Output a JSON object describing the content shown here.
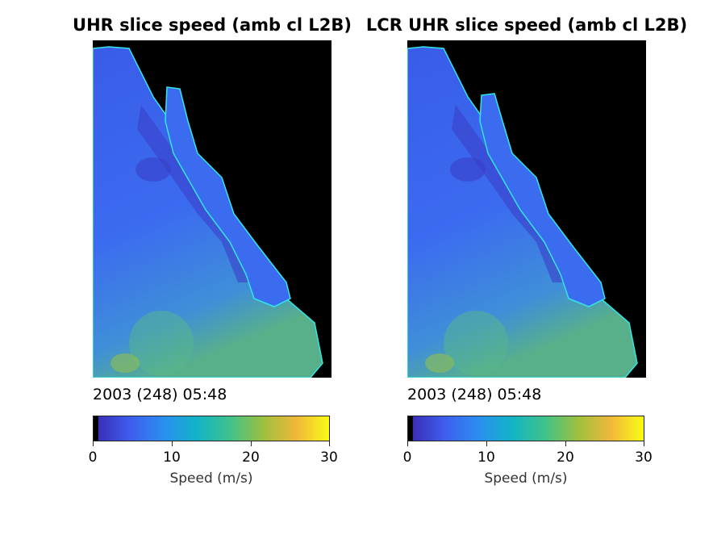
{
  "panels": [
    {
      "title": "UHR slice speed (amb cl L2B)",
      "timestamp": "2003 (248) 05:48"
    },
    {
      "title": "LCR UHR slice speed (amb cl L2B)",
      "timestamp": "2003 (248) 05:48"
    }
  ],
  "colorbar": {
    "label": "Speed (m/s)",
    "range": [
      0,
      30
    ],
    "ticks": [
      "0",
      "10",
      "20",
      "30"
    ],
    "colormap": [
      "#000000",
      "#3a2fb8",
      "#3e5ff0",
      "#2a8ff0",
      "#11b4c6",
      "#3fc28a",
      "#9dc03f",
      "#f0b83a",
      "#f9fb14"
    ]
  },
  "colors": {
    "background": "#000000",
    "sea_low": "#3c4fe0",
    "sea_mid": "#3a7df0",
    "sea_high": "#4fb6a8",
    "coast": "#33e6e6"
  }
}
